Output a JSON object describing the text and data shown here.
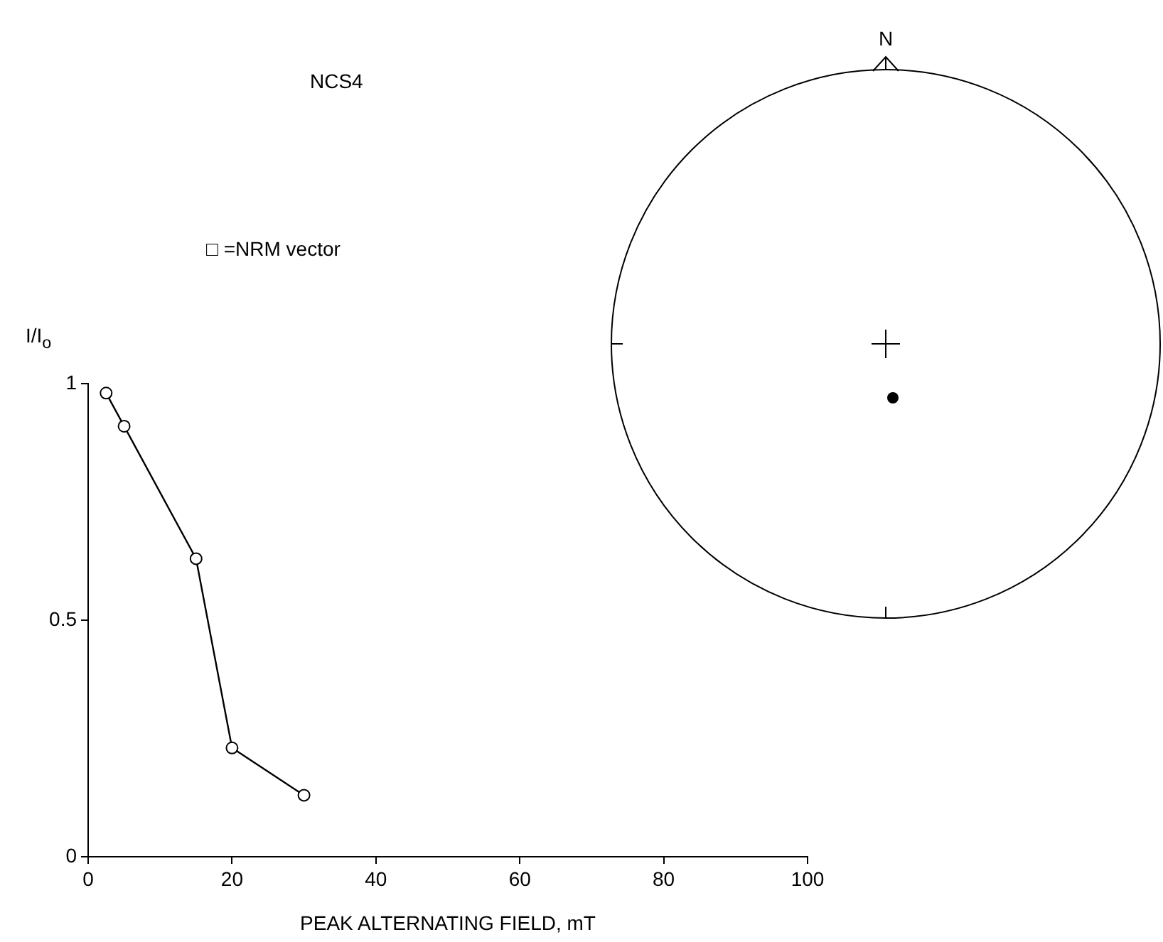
{
  "chart_data": [
    {
      "type": "line",
      "title": "NCS4",
      "annotations": [
        "□ =NRM vector"
      ],
      "xlabel": "PEAK ALTERNATING FIELD, mT",
      "ylabel": "I/I$_{o}$",
      "x": [
        2.5,
        5,
        15,
        20,
        30
      ],
      "values": [
        0.98,
        0.91,
        0.63,
        0.23,
        0.13
      ],
      "color": "#000000",
      "xlim": [
        0,
        100
      ],
      "xticks": [
        0,
        20,
        40,
        60,
        80,
        100
      ],
      "ylim": [
        0,
        1
      ],
      "yticks": [
        0,
        0.5,
        1
      ],
      "marker": "circle",
      "line_style": "solid"
    },
    {
      "type": "other",
      "annotations": [
        "N"
      ]
    }
  ]
}
